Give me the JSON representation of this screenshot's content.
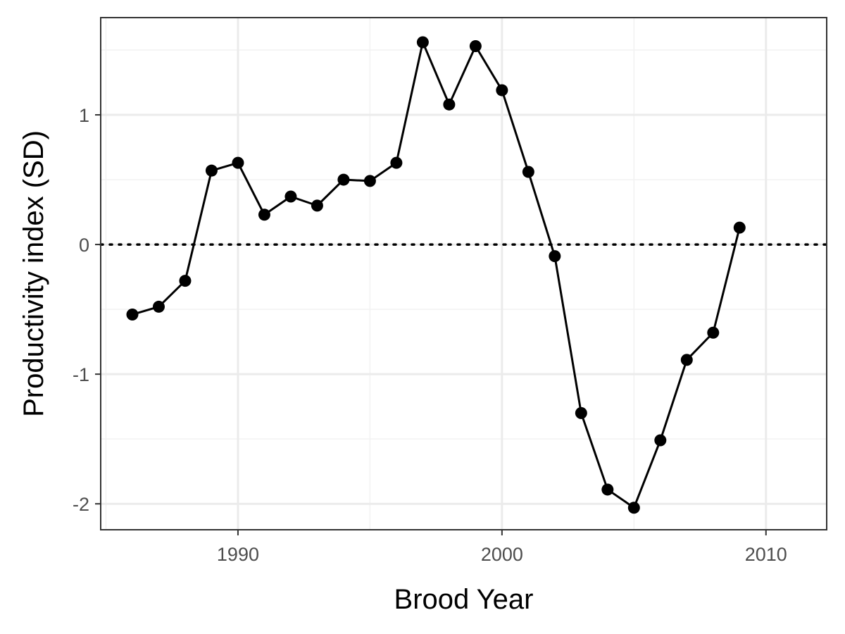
{
  "chart_data": {
    "type": "line",
    "title": "",
    "xlabel": "Brood Year",
    "ylabel": "Productivity index (SD)",
    "xlim": [
      1984.8,
      2012.3
    ],
    "ylim": [
      -2.2,
      1.75
    ],
    "x_ticks": [
      1990,
      2000,
      2010
    ],
    "x_tick_labels": [
      "1990",
      "2000",
      "2010"
    ],
    "y_ticks": [
      -2,
      -1,
      0,
      1
    ],
    "y_tick_labels": [
      "-2",
      "-1",
      "0",
      "1"
    ],
    "grid": true,
    "reference_line": {
      "y": 0,
      "style": "dotted"
    },
    "series": [
      {
        "x": [
          1986,
          1987,
          1988,
          1989,
          1990,
          1991,
          1992,
          1993,
          1994,
          1995,
          1996,
          1997,
          1998,
          1999,
          2000,
          2001,
          2002,
          2003,
          2004,
          2005,
          2006,
          2007,
          2008,
          2009
        ],
        "y": [
          -0.54,
          -0.48,
          -0.28,
          0.57,
          0.63,
          0.23,
          0.37,
          0.3,
          0.5,
          0.49,
          0.63,
          1.56,
          1.08,
          1.53,
          1.19,
          0.56,
          -0.09,
          -1.3,
          -1.89,
          -2.03,
          -1.51,
          -0.89,
          -0.68,
          0.13
        ]
      }
    ]
  },
  "colors": {
    "line": "#000000",
    "point": "#000000",
    "grid_major": "#ebebeb",
    "grid_minor": "#f2f2f2",
    "panel_border": "#333333",
    "tick_text": "#4d4d4d"
  }
}
